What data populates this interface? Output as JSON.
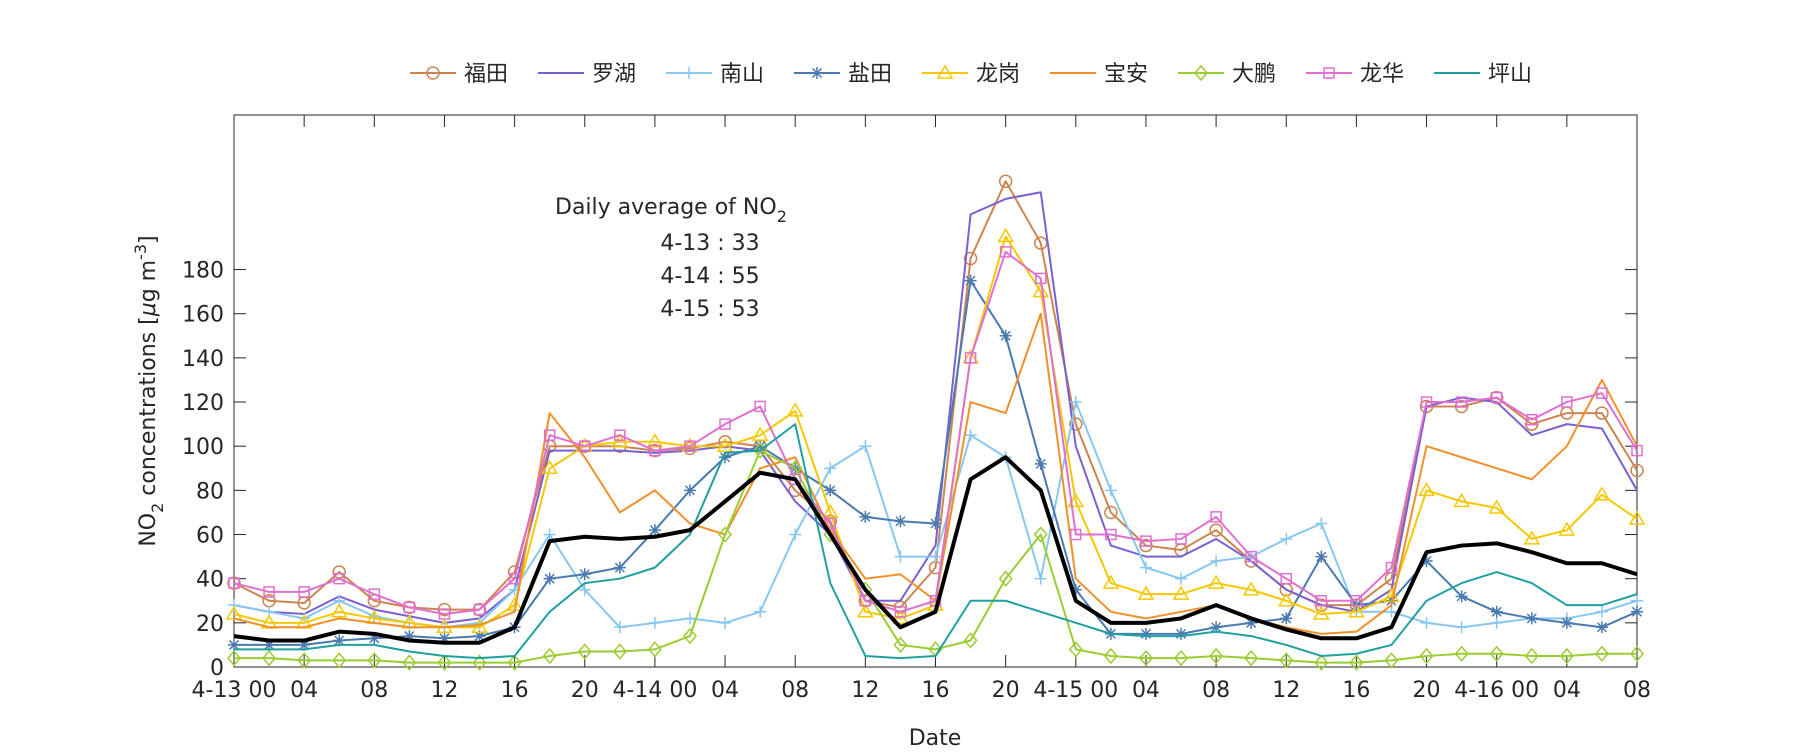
{
  "chart_data": {
    "type": "line",
    "xlabel": "Date",
    "ylabel_parts": [
      "NO",
      "2",
      " concentrations [",
      "μ",
      "g m",
      "-3",
      "]"
    ],
    "annotation": {
      "title_parts": [
        "Daily average of NO",
        "2"
      ],
      "lines": [
        "4-13 : 33",
        "4-14 : 55",
        "4-15 : 53"
      ]
    },
    "x": [
      0,
      2,
      4,
      6,
      8,
      10,
      12,
      14,
      16,
      18,
      20,
      22,
      24,
      26,
      28,
      30,
      32,
      34,
      36,
      38,
      40,
      42,
      44,
      46,
      48,
      50,
      52,
      54,
      56,
      58,
      60,
      62,
      64,
      66,
      68,
      70,
      72,
      74,
      76,
      78,
      80
    ],
    "xlim": [
      0,
      80
    ],
    "xticks": [
      {
        "value": 0,
        "label": "4-13 00"
      },
      {
        "value": 4,
        "label": "04"
      },
      {
        "value": 8,
        "label": "08"
      },
      {
        "value": 12,
        "label": "12"
      },
      {
        "value": 16,
        "label": "16"
      },
      {
        "value": 20,
        "label": "20"
      },
      {
        "value": 24,
        "label": "4-14 00"
      },
      {
        "value": 28,
        "label": "04"
      },
      {
        "value": 32,
        "label": "08"
      },
      {
        "value": 36,
        "label": "12"
      },
      {
        "value": 40,
        "label": "16"
      },
      {
        "value": 44,
        "label": "20"
      },
      {
        "value": 48,
        "label": "4-15 00"
      },
      {
        "value": 52,
        "label": "04"
      },
      {
        "value": 56,
        "label": "08"
      },
      {
        "value": 60,
        "label": "12"
      },
      {
        "value": 64,
        "label": "16"
      },
      {
        "value": 68,
        "label": "20"
      },
      {
        "value": 72,
        "label": "4-16 00"
      },
      {
        "value": 76,
        "label": "04"
      },
      {
        "value": 80,
        "label": "08"
      }
    ],
    "ylim": [
      0,
      250
    ],
    "yticks": [
      0,
      20,
      40,
      60,
      80,
      100,
      120,
      140,
      160,
      180
    ],
    "series": [
      {
        "name": "福田",
        "color": "#cc8550",
        "marker": "circle",
        "values": [
          38,
          30,
          29,
          43,
          30,
          27,
          26,
          26,
          43,
          100,
          100,
          100,
          98,
          99,
          102,
          100,
          80,
          66,
          30,
          27,
          45,
          185,
          220,
          192,
          110,
          70,
          55,
          53,
          62,
          48,
          35,
          28,
          28,
          40,
          118,
          118,
          122,
          110,
          115,
          115,
          89
        ]
      },
      {
        "name": "罗湖",
        "color": "#7a60d0",
        "marker": "none",
        "values": [
          28,
          25,
          24,
          32,
          26,
          23,
          20,
          22,
          35,
          98,
          98,
          98,
          97,
          98,
          100,
          98,
          75,
          60,
          30,
          30,
          55,
          205,
          212,
          215,
          100,
          55,
          50,
          50,
          58,
          48,
          35,
          28,
          25,
          35,
          118,
          122,
          120,
          105,
          110,
          108,
          80
        ]
      },
      {
        "name": "南山",
        "color": "#88c8f0",
        "marker": "plus",
        "values": [
          28,
          25,
          22,
          30,
          23,
          20,
          18,
          20,
          35,
          60,
          35,
          18,
          20,
          22,
          20,
          25,
          60,
          90,
          100,
          50,
          50,
          105,
          95,
          40,
          120,
          80,
          45,
          40,
          48,
          50,
          58,
          65,
          25,
          25,
          20,
          18,
          20,
          22,
          22,
          25,
          30
        ]
      },
      {
        "name": "盐田",
        "color": "#4a7ab0",
        "marker": "star",
        "values": [
          10,
          10,
          10,
          12,
          13,
          14,
          13,
          14,
          18,
          40,
          42,
          45,
          62,
          80,
          95,
          100,
          90,
          80,
          68,
          66,
          65,
          175,
          150,
          92,
          35,
          15,
          15,
          15,
          18,
          20,
          22,
          50,
          28,
          30,
          48,
          32,
          25,
          22,
          20,
          18,
          25
        ]
      },
      {
        "name": "龙岗",
        "color": "#f5c800",
        "marker": "triangle",
        "values": [
          24,
          20,
          20,
          25,
          22,
          20,
          18,
          18,
          28,
          90,
          100,
          102,
          102,
          100,
          100,
          105,
          116,
          70,
          25,
          22,
          28,
          140,
          195,
          170,
          75,
          38,
          33,
          33,
          38,
          35,
          30,
          24,
          25,
          32,
          80,
          75,
          72,
          58,
          62,
          78,
          67
        ]
      },
      {
        "name": "宝安",
        "color": "#f0902a",
        "marker": "none",
        "values": [
          22,
          18,
          18,
          22,
          20,
          18,
          18,
          19,
          25,
          115,
          95,
          70,
          80,
          65,
          60,
          90,
          95,
          62,
          40,
          42,
          30,
          120,
          115,
          160,
          40,
          25,
          22,
          25,
          28,
          22,
          18,
          15,
          16,
          28,
          100,
          95,
          90,
          85,
          100,
          130,
          100
        ]
      },
      {
        "name": "大鹏",
        "color": "#9acd32",
        "marker": "diamond",
        "values": [
          4,
          4,
          3,
          3,
          3,
          2,
          2,
          2,
          2,
          5,
          7,
          7,
          8,
          14,
          60,
          98,
          90,
          60,
          35,
          10,
          8,
          12,
          40,
          60,
          8,
          5,
          4,
          4,
          5,
          4,
          3,
          2,
          2,
          3,
          5,
          6,
          6,
          5,
          5,
          6,
          6
        ]
      },
      {
        "name": "龙华",
        "color": "#e070d0",
        "marker": "square",
        "values": [
          38,
          34,
          34,
          40,
          33,
          27,
          24,
          26,
          40,
          105,
          100,
          105,
          98,
          100,
          110,
          118,
          85,
          65,
          30,
          25,
          30,
          140,
          188,
          176,
          60,
          60,
          57,
          58,
          68,
          50,
          40,
          30,
          30,
          45,
          120,
          120,
          122,
          112,
          120,
          124,
          98
        ]
      },
      {
        "name": "坪山",
        "color": "#20a0a0",
        "marker": "none",
        "values": [
          8,
          8,
          8,
          10,
          10,
          7,
          5,
          4,
          5,
          25,
          38,
          40,
          45,
          60,
          97,
          98,
          110,
          38,
          5,
          4,
          5,
          30,
          30,
          25,
          20,
          15,
          14,
          14,
          16,
          14,
          10,
          5,
          6,
          10,
          30,
          38,
          43,
          38,
          28,
          28,
          33
        ]
      },
      {
        "color": "#000000",
        "width": 4,
        "marker": "none",
        "values": [
          14,
          12,
          12,
          16,
          15,
          12,
          11,
          11,
          18,
          57,
          59,
          58,
          59,
          62,
          75,
          88,
          85,
          60,
          35,
          18,
          25,
          85,
          95,
          80,
          30,
          20,
          20,
          22,
          28,
          22,
          17,
          13,
          13,
          18,
          52,
          55,
          56,
          52,
          47,
          47,
          42
        ]
      }
    ]
  }
}
